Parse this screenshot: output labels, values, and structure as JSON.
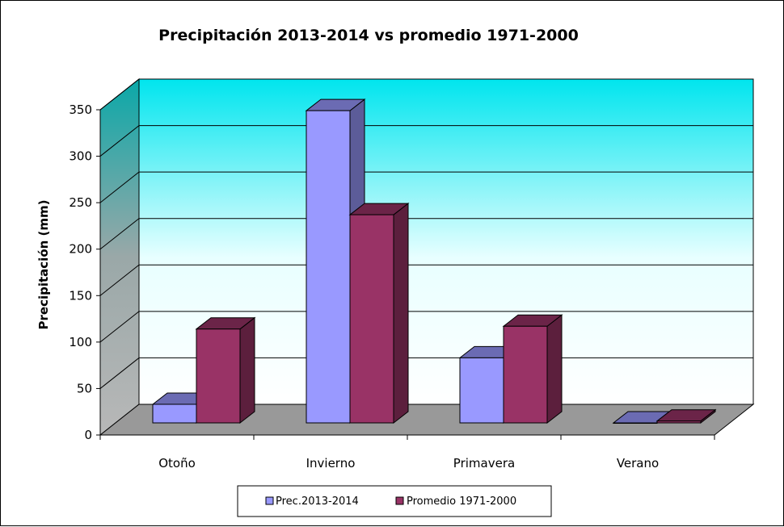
{
  "chart_data": {
    "type": "bar",
    "title": "Precipitación 2013-2014 vs promedio 1971-2000",
    "ylabel": "Precipitación (mm)",
    "xlabel": "",
    "ylim": [
      0,
      350
    ],
    "yticks": [
      0,
      50,
      100,
      150,
      200,
      250,
      300,
      350
    ],
    "categories": [
      "Otoño",
      "Invierno",
      "Primavera",
      "Verano"
    ],
    "series": [
      {
        "name": "Prec.2013-2014",
        "values": [
          20,
          336,
          70,
          0
        ],
        "color": "#9999ff",
        "top_color": "#6b6bb3",
        "side_color": "#5c5c99"
      },
      {
        "name": "Promedio 1971-2000",
        "values": [
          101,
          224,
          104,
          2
        ],
        "color": "#993366",
        "top_color": "#6b2448",
        "side_color": "#5c1f3d"
      }
    ],
    "grid": true,
    "legend": "bottom",
    "style": "3d-clustered-column"
  }
}
